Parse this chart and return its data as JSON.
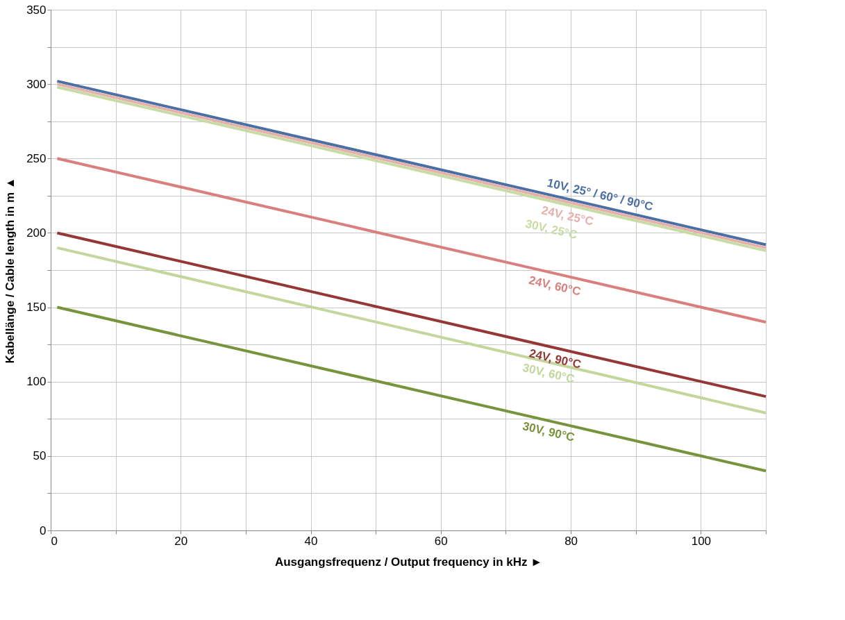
{
  "chart_data": {
    "type": "line",
    "xlabel": "Ausgangsfrequenz / Output frequency in kHz  ►",
    "ylabel": "Kabellänge / Cable length in m  ▲",
    "xlim": [
      0,
      110
    ],
    "ylim": [
      0,
      350
    ],
    "xticks": [
      0,
      {
        "value": 10,
        "label": null
      },
      20,
      {
        "value": 30,
        "label": null
      },
      40,
      {
        "value": 50,
        "label": null
      },
      60,
      {
        "value": 70,
        "label": null
      },
      80,
      {
        "value": 90,
        "label": null
      },
      100,
      {
        "value": 110,
        "label": null
      }
    ],
    "yticks": [
      0,
      {
        "value": 25,
        "label": null
      },
      50,
      {
        "value": 75,
        "label": null
      },
      100,
      {
        "value": 125,
        "label": null
      },
      150,
      {
        "value": 175,
        "label": null
      },
      200,
      {
        "value": 225,
        "label": null
      },
      250,
      {
        "value": 275,
        "label": null
      },
      300,
      {
        "value": 325,
        "label": null
      },
      350
    ],
    "grid": true,
    "legend": false,
    "marker": "none",
    "line_style": "solid",
    "x": [
      1,
      110
    ],
    "series": [
      {
        "name": "10V, 25° / 60° / 90°C",
        "color": "#4a6fa5",
        "values": [
          302,
          192
        ]
      },
      {
        "name": "24V, 25°C",
        "color": "#e6b0ac",
        "values": [
          300,
          190
        ]
      },
      {
        "name": "30V, 25°C",
        "color": "#c7dca4",
        "values": [
          298,
          188
        ]
      },
      {
        "name": "24V, 60°C",
        "color": "#d9807e",
        "values": [
          250,
          140
        ]
      },
      {
        "name": "24V, 90°C",
        "color": "#953735",
        "values": [
          200,
          90
        ]
      },
      {
        "name": "30V, 60°C",
        "color": "#c3d69b",
        "values": [
          190,
          79
        ]
      },
      {
        "name": "30V, 90°C",
        "color": "#77933c",
        "values": [
          150,
          40
        ]
      }
    ]
  }
}
